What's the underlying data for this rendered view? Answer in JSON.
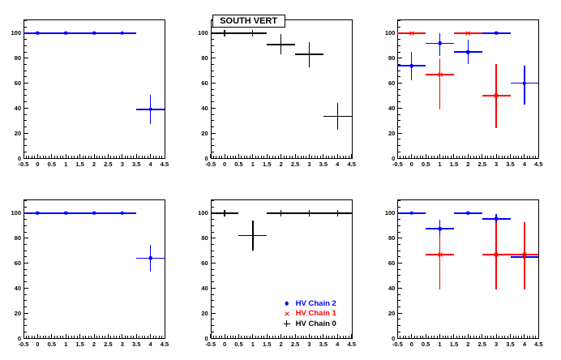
{
  "colors": {
    "chain2_blue": "#0000ff",
    "chain1_red": "#ff0000",
    "chain0_black": "#000000",
    "frame": "#000000",
    "background": "#ffffff"
  },
  "axes": {
    "xlim": [
      -0.5,
      4.5
    ],
    "ylim": [
      0,
      111
    ],
    "x_tick_values": [
      -0.5,
      0,
      0.5,
      1,
      1.5,
      2,
      2.5,
      3,
      3.5,
      4,
      4.5
    ],
    "x_tick_labels": [
      "-0.5",
      "0",
      "0.5",
      "1",
      "1.5",
      "2",
      "2.5",
      "3",
      "3.5",
      "4",
      "4.5"
    ],
    "x_minor_step": 0.1,
    "y_tick_values": [
      0,
      20,
      40,
      60,
      80,
      100
    ],
    "y_tick_labels": [
      "0",
      "20",
      "40",
      "60",
      "80",
      "100"
    ],
    "y_minor_step": 5,
    "grid": false
  },
  "legend": {
    "position": "inside-bottom-right",
    "entries": [
      {
        "label": "HV Chain 2",
        "color": "#0000ff",
        "marker": "circle"
      },
      {
        "label": "HV Chain 1",
        "color": "#ff0000",
        "marker": "x"
      },
      {
        "label": "HV Chain 0",
        "color": "#000000",
        "marker": "plus"
      }
    ]
  },
  "chart_data": [
    {
      "id": "top-left",
      "type": "scatter",
      "title": "",
      "show_legend": false,
      "series": [
        {
          "name": "HV Chain 2",
          "color": "#0000ff",
          "marker": "circle",
          "xerr": 0.5,
          "points": [
            {
              "x": 0,
              "y": 100
            },
            {
              "x": 1,
              "y": 100
            },
            {
              "x": 2,
              "y": 100
            },
            {
              "x": 3,
              "y": 100
            },
            {
              "x": 4,
              "y": 39,
              "ylo": 27.5,
              "yhi": 50.5
            }
          ]
        }
      ]
    },
    {
      "id": "top-middle",
      "type": "scatter",
      "title": "SOUTH VERT",
      "show_legend": false,
      "series": [
        {
          "name": "HV Chain 0",
          "color": "#000000",
          "marker": "plus",
          "xerr": 0.5,
          "points": [
            {
              "x": 0,
              "y": 100
            },
            {
              "x": 1,
              "y": 100
            },
            {
              "x": 2,
              "y": 91,
              "ylo": 83,
              "yhi": 99
            },
            {
              "x": 3,
              "y": 83,
              "ylo": 73,
              "yhi": 93
            },
            {
              "x": 4,
              "y": 33.5,
              "ylo": 23,
              "yhi": 44
            }
          ]
        }
      ]
    },
    {
      "id": "top-right",
      "type": "scatter",
      "title": "",
      "show_legend": false,
      "series": [
        {
          "name": "HV Chain 2",
          "color": "#0000ff",
          "marker": "circle",
          "xerr": 0.5,
          "points": [
            {
              "x": 0,
              "y": 74,
              "ylo": 62,
              "yhi": 85
            },
            {
              "x": 1,
              "y": 92,
              "ylo": 82,
              "yhi": 100
            },
            {
              "x": 2,
              "y": 85,
              "ylo": 75,
              "yhi": 95
            },
            {
              "x": 3,
              "y": 100
            },
            {
              "x": 4,
              "y": 60,
              "ylo": 43,
              "yhi": 74
            }
          ]
        },
        {
          "name": "HV Chain 1",
          "color": "#ff0000",
          "marker": "x",
          "xerr": 0.5,
          "points": [
            {
              "x": 0,
              "y": 100
            },
            {
              "x": 1,
              "y": 67,
              "ylo": 39,
              "yhi": 80
            },
            {
              "x": 2,
              "y": 100
            },
            {
              "x": 3,
              "y": 50,
              "ylo": 24,
              "yhi": 75
            }
          ]
        }
      ]
    },
    {
      "id": "bottom-left",
      "type": "scatter",
      "title": "",
      "show_legend": false,
      "series": [
        {
          "name": "HV Chain 2",
          "color": "#0000ff",
          "marker": "circle",
          "xerr": 0.5,
          "points": [
            {
              "x": 0,
              "y": 100
            },
            {
              "x": 1,
              "y": 100
            },
            {
              "x": 2,
              "y": 100
            },
            {
              "x": 3,
              "y": 100
            },
            {
              "x": 4,
              "y": 64,
              "ylo": 53.5,
              "yhi": 74.5
            }
          ]
        }
      ]
    },
    {
      "id": "bottom-middle",
      "type": "scatter",
      "title": "",
      "show_legend": true,
      "series": [
        {
          "name": "HV Chain 0",
          "color": "#000000",
          "marker": "plus",
          "xerr": 0.5,
          "points": [
            {
              "x": 0,
              "y": 100
            },
            {
              "x": 1,
              "y": 82,
              "ylo": 70,
              "yhi": 94
            },
            {
              "x": 2,
              "y": 100
            },
            {
              "x": 3,
              "y": 100
            },
            {
              "x": 4,
              "y": 100
            }
          ]
        }
      ]
    },
    {
      "id": "bottom-right",
      "type": "scatter",
      "title": "",
      "show_legend": false,
      "series": [
        {
          "name": "HV Chain 2",
          "color": "#0000ff",
          "marker": "circle",
          "xerr": 0.5,
          "points": [
            {
              "x": 0,
              "y": 100
            },
            {
              "x": 1,
              "y": 87.5,
              "ylo": 80,
              "yhi": 94.5
            },
            {
              "x": 2,
              "y": 100
            },
            {
              "x": 3,
              "y": 95.5,
              "ylo": 89.5,
              "yhi": 99.5
            },
            {
              "x": 4,
              "y": 65,
              "ylo": 53,
              "yhi": 76
            }
          ]
        },
        {
          "name": "HV Chain 1",
          "color": "#ff0000",
          "marker": "x",
          "xerr": 0.5,
          "points": [
            {
              "x": 1,
              "y": 67,
              "ylo": 39,
              "yhi": 81
            },
            {
              "x": 3,
              "y": 67,
              "ylo": 39,
              "yhi": 93
            },
            {
              "x": 4,
              "y": 67,
              "ylo": 39,
              "yhi": 93
            }
          ]
        }
      ]
    }
  ]
}
